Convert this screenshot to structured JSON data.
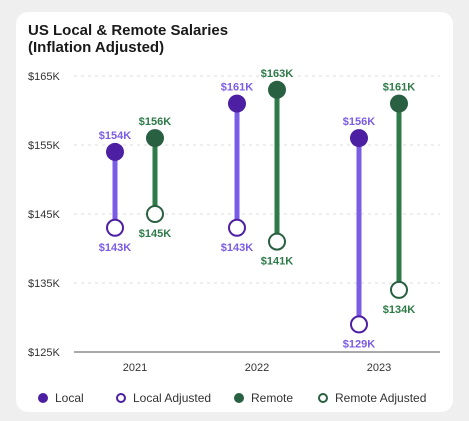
{
  "title": {
    "line1": "US Local & Remote Salaries",
    "line2": "(Inflation Adjusted)"
  },
  "colors": {
    "local": "#4d1fa3",
    "local_line": "#7b5ce6",
    "local_label": "#7b5ce6",
    "remote": "#2a6042",
    "remote_line": "#2e7a49",
    "remote_label": "#2e7a49",
    "axis": "#555555",
    "grid": "#dcdcdc"
  },
  "chart_data": {
    "type": "dumbbell",
    "categories": [
      "2021",
      "2022",
      "2023"
    ],
    "y_ticks": [
      "$125K",
      "$135K",
      "$145K",
      "$155K",
      "$165K"
    ],
    "y_tick_values": [
      125,
      135,
      145,
      155,
      165
    ],
    "ylim": [
      125,
      165
    ],
    "grid": true,
    "series": [
      {
        "name": "Local",
        "key": "local",
        "values": [
          154,
          161,
          156
        ],
        "labels": [
          "$154K",
          "$161K",
          "$156K"
        ]
      },
      {
        "name": "Local Adjusted",
        "key": "local_adjusted",
        "values": [
          143,
          143,
          129
        ],
        "labels": [
          "$143K",
          "$143K",
          "$129K"
        ]
      },
      {
        "name": "Remote",
        "key": "remote",
        "values": [
          156,
          163,
          161
        ],
        "labels": [
          "$156K",
          "$163K",
          "$161K"
        ]
      },
      {
        "name": "Remote Adjusted",
        "key": "remote_adjusted",
        "values": [
          145,
          141,
          134
        ],
        "labels": [
          "$145K",
          "$141K",
          "$134K"
        ]
      }
    ]
  },
  "legend": [
    {
      "label": "Local",
      "style": "local-filled"
    },
    {
      "label": "Local Adjusted",
      "style": "local-hollow"
    },
    {
      "label": "Remote",
      "style": "remote-filled"
    },
    {
      "label": "Remote Adjusted",
      "style": "remote-hollow"
    }
  ]
}
